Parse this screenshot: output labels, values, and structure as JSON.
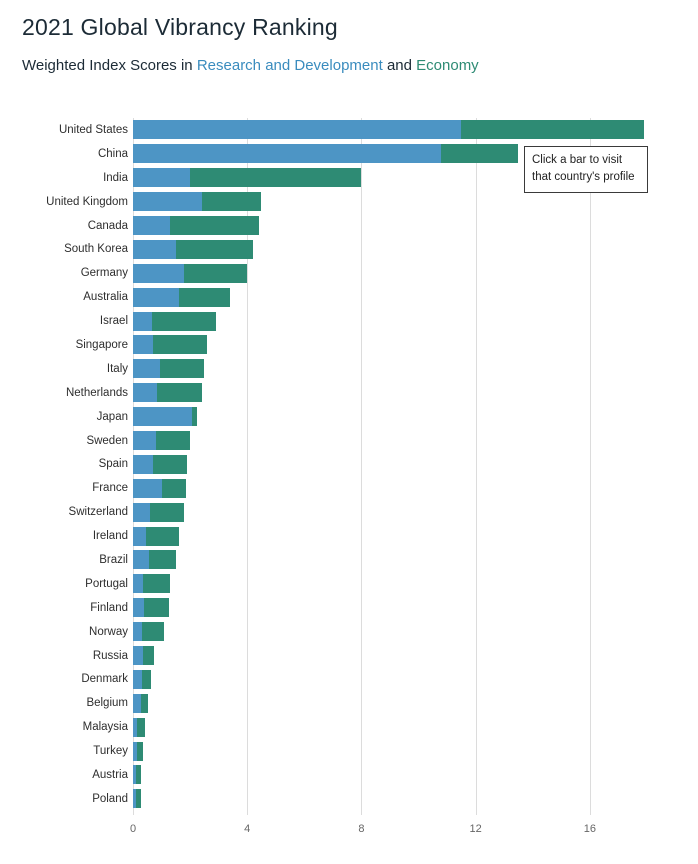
{
  "header": {
    "title": "2021 Global Vibrancy Ranking",
    "subtitle_prefix": "Weighted Index Scores in ",
    "subtitle_link1": "Research and Development",
    "subtitle_and": " and ",
    "subtitle_link2": "Economy"
  },
  "tooltip": {
    "text": "Click a bar to visit that country's profile"
  },
  "colors": {
    "rnd_bar": "#4d95c5",
    "economy_bar": "#2e8b74",
    "rnd_link": "#3a8cbe",
    "economy_link": "#2e8b74",
    "title_text": "#1c2b36",
    "gridline": "#dcdcdc",
    "axis_text": "#666666"
  },
  "chart_data": {
    "type": "bar",
    "orientation": "horizontal",
    "stacked": true,
    "title": "2021 Global Vibrancy Ranking",
    "subtitle": "Weighted Index Scores in Research and Development and Economy",
    "xlabel": "",
    "ylabel": "",
    "xlim": [
      0,
      18
    ],
    "x_ticks": [
      0,
      4,
      8,
      12,
      16
    ],
    "grid": true,
    "legend_position": "none",
    "categories": [
      "United States",
      "China",
      "India",
      "United Kingdom",
      "Canada",
      "South Korea",
      "Germany",
      "Australia",
      "Israel",
      "Singapore",
      "Italy",
      "Netherlands",
      "Japan",
      "Sweden",
      "Spain",
      "France",
      "Switzerland",
      "Ireland",
      "Brazil",
      "Portugal",
      "Finland",
      "Norway",
      "Russia",
      "Denmark",
      "Belgium",
      "Malaysia",
      "Turkey",
      "Austria",
      "Poland"
    ],
    "series": [
      {
        "name": "Research and Development",
        "color": "#4d95c5",
        "values": [
          11.5,
          10.8,
          2.0,
          2.4,
          1.3,
          1.5,
          1.8,
          1.6,
          0.65,
          0.7,
          0.95,
          0.85,
          2.05,
          0.8,
          0.7,
          1.0,
          0.6,
          0.45,
          0.55,
          0.35,
          0.4,
          0.3,
          0.35,
          0.3,
          0.28,
          0.15,
          0.15,
          0.1,
          0.1
        ]
      },
      {
        "name": "Economy",
        "color": "#2e8b74",
        "values": [
          6.4,
          2.7,
          6.0,
          2.1,
          3.1,
          2.7,
          2.2,
          1.8,
          2.25,
          1.9,
          1.55,
          1.55,
          0.2,
          1.2,
          1.2,
          0.85,
          1.2,
          1.15,
          0.95,
          0.95,
          0.85,
          0.8,
          0.4,
          0.33,
          0.25,
          0.27,
          0.2,
          0.18,
          0.18
        ]
      }
    ]
  }
}
